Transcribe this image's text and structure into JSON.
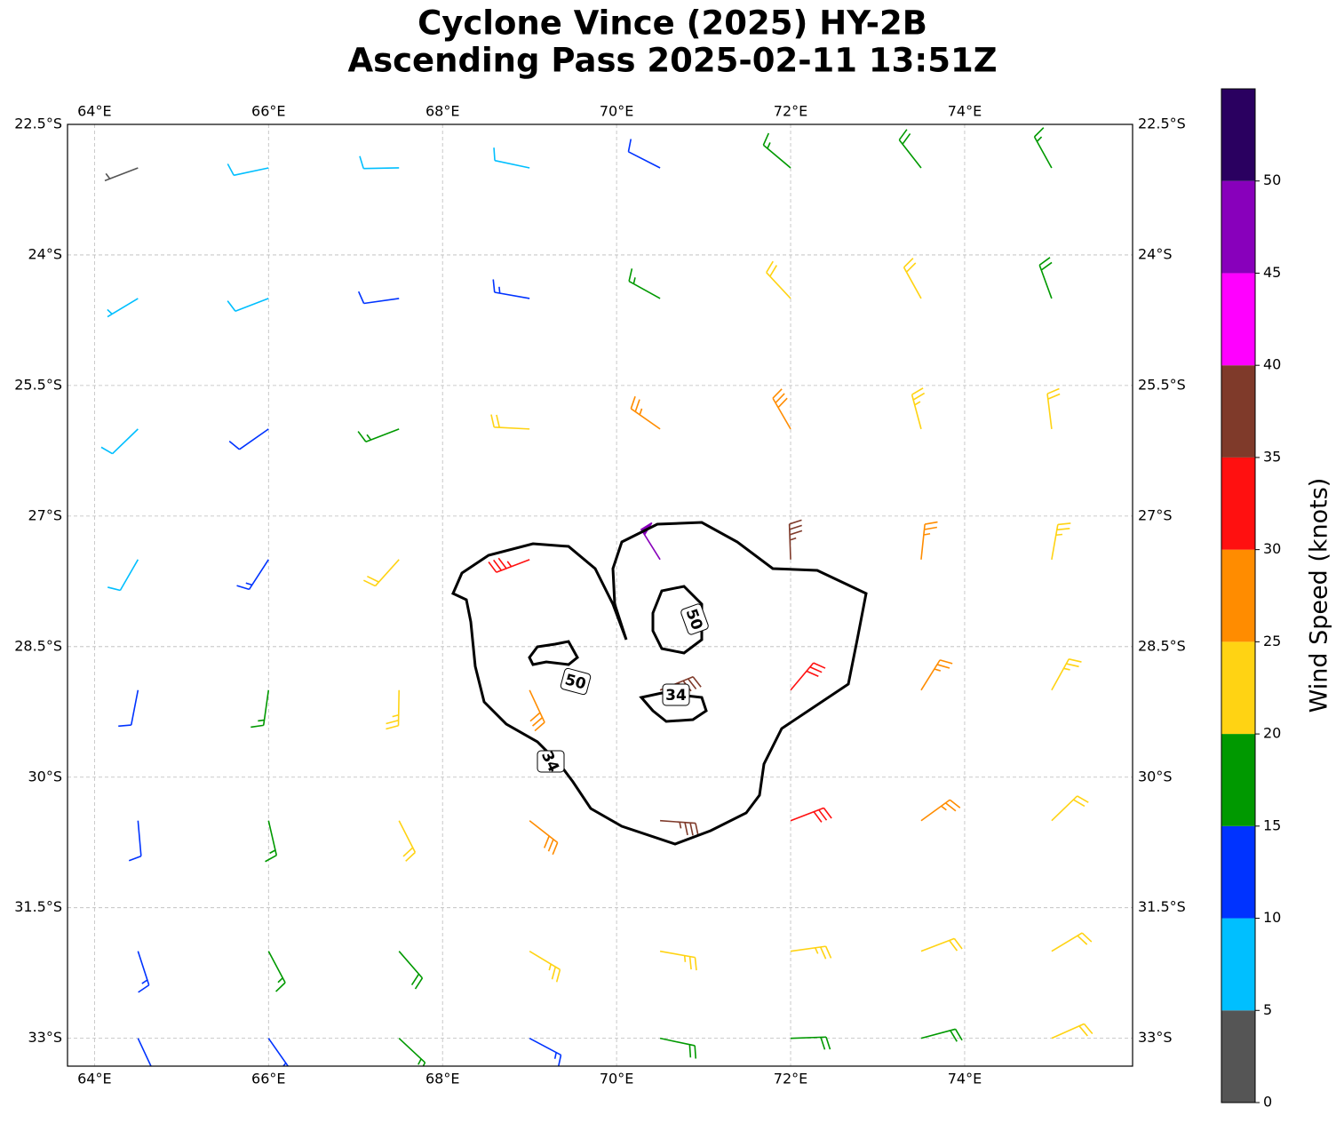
{
  "chart_data": {
    "type": "barbs",
    "title": [
      "Cyclone Vince (2025) HY-2B",
      "Ascending Pass 2025-02-11 13:51Z"
    ],
    "xlim": [
      63.69,
      75.93
    ],
    "ylim": [
      -33.32,
      -22.5
    ],
    "xticks": [
      {
        "value": 64,
        "label": "64°E"
      },
      {
        "value": 66,
        "label": "66°E"
      },
      {
        "value": 68,
        "label": "68°E"
      },
      {
        "value": 70,
        "label": "70°E"
      },
      {
        "value": 72,
        "label": "72°E"
      },
      {
        "value": 74,
        "label": "74°E"
      }
    ],
    "yticks": [
      {
        "value": -22.5,
        "label": "22.5°S"
      },
      {
        "value": -24,
        "label": "24°S"
      },
      {
        "value": -25.5,
        "label": "25.5°S"
      },
      {
        "value": -27,
        "label": "27°S"
      },
      {
        "value": -28.5,
        "label": "28.5°S"
      },
      {
        "value": -30,
        "label": "30°S"
      },
      {
        "value": -31.5,
        "label": "31.5°S"
      },
      {
        "value": -33,
        "label": "33°S"
      }
    ],
    "grid": true,
    "barbs": {
      "lon": [
        64.5,
        66,
        67.5,
        69,
        70.5,
        72,
        73.5,
        75
      ],
      "lat": [
        -23,
        -24.5,
        -26,
        -27.5,
        -29,
        -30.5,
        -32,
        -33
      ],
      "speed": [
        [
          3,
          8,
          8,
          9,
          12,
          17,
          18,
          17
        ],
        [
          7,
          8,
          11,
          13,
          17,
          21,
          22,
          18
        ],
        [
          8,
          12,
          16,
          22,
          27,
          28,
          24,
          21
        ],
        [
          9,
          13,
          21,
          33,
          48,
          37,
          27,
          23
        ],
        [
          12,
          17,
          23,
          29,
          38,
          32,
          27,
          23
        ],
        [
          12,
          17,
          22,
          28,
          37,
          31,
          26,
          22
        ],
        [
          13,
          16,
          18,
          23,
          24,
          23,
          22,
          21
        ],
        [
          12,
          14,
          16,
          14,
          18,
          19,
          18,
          21
        ]
      ],
      "direction": [
        [
          249,
          258,
          269,
          282,
          297,
          310,
          322,
          331
        ],
        [
          239,
          249,
          262,
          280,
          299,
          317,
          331,
          340
        ],
        [
          226,
          235,
          249,
          273,
          305,
          330,
          345,
          353
        ],
        [
          210,
          213,
          222,
          249,
          328,
          358,
          6,
          10
        ],
        [
          191,
          188,
          181,
          155,
          68,
          40,
          32,
          29
        ],
        [
          175,
          167,
          153,
          128,
          94,
          69,
          54,
          46
        ],
        [
          162,
          152,
          139,
          121,
          100,
          82,
          69,
          59
        ],
        [
          155,
          145,
          133,
          118,
          102,
          88,
          75,
          66
        ]
      ]
    },
    "contour_levels": [
      34,
      50
    ],
    "colorbar": {
      "label": "Wind Speed (knots)",
      "bounds": [
        0,
        5,
        10,
        15,
        20,
        25,
        30,
        35,
        40,
        45,
        50,
        55
      ],
      "colors": [
        "#555555",
        "#00bfff",
        "#0033ff",
        "#009900",
        "#ffd313",
        "#ff8c00",
        "#ff1010",
        "#7f3a2a",
        "#ff00ff",
        "#8800bb",
        "#2a0060"
      ],
      "ticks": [
        0,
        5,
        10,
        15,
        20,
        25,
        30,
        35,
        40,
        45,
        50
      ]
    }
  }
}
